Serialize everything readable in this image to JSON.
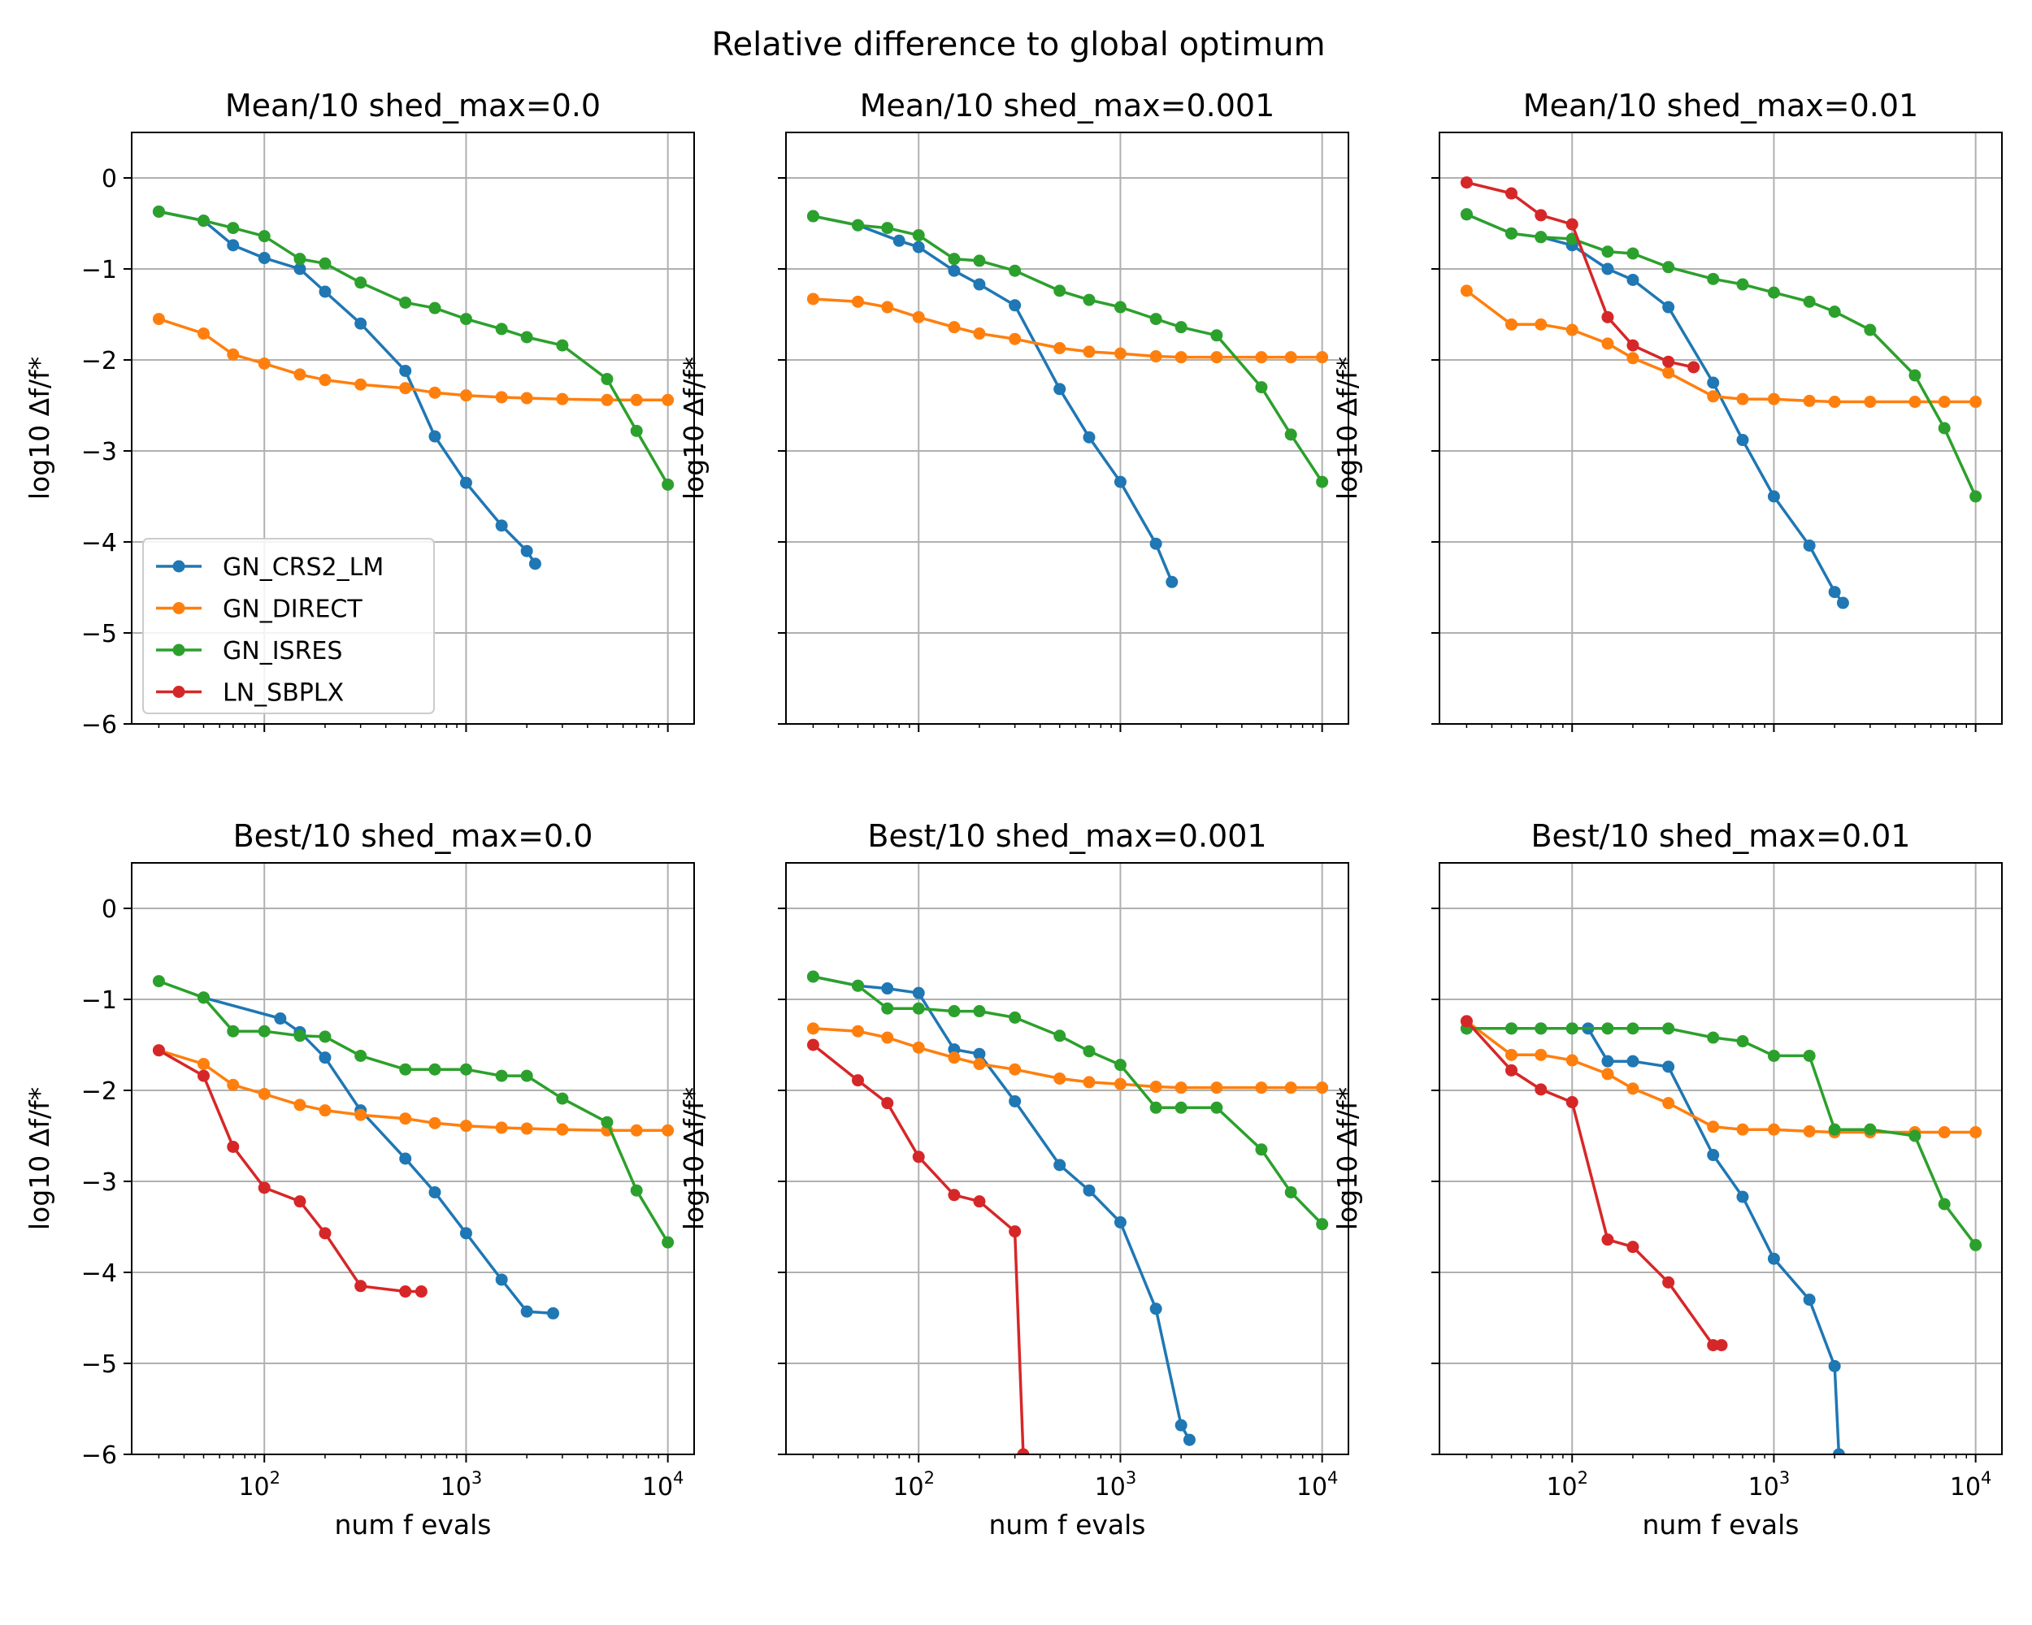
{
  "figure": {
    "suptitle": "Relative difference to global optimum"
  },
  "colors": {
    "GN_CRS2_LM": "#1f77b4",
    "GN_DIRECT": "#ff7f0e",
    "GN_ISRES": "#2ca02c",
    "LN_SBPLX": "#d62728",
    "grid": "#b0b0b0",
    "axes": "#000000"
  },
  "legend": {
    "placement": "lower-left of first panel",
    "entries": [
      "GN_CRS2_LM",
      "GN_DIRECT",
      "GN_ISRES",
      "LN_SBPLX"
    ]
  },
  "chart_data": [
    {
      "type": "line",
      "title": "Mean/10 shed_max=0.0",
      "xlabel": "",
      "ylabel": "log10 Δf/f*",
      "xscale": "log",
      "xlim": [
        22,
        13500
      ],
      "ylim": [
        -6,
        0.5
      ],
      "yticks": [
        "0",
        "−1",
        "−2",
        "−3",
        "−4",
        "−5",
        "−6"
      ],
      "xticks": [],
      "grid": true,
      "legend": true,
      "series": [
        {
          "name": "GN_CRS2_LM",
          "x": [
            30,
            50,
            70,
            100,
            150,
            200,
            300,
            500,
            700,
            1000,
            1500,
            2000,
            2200
          ],
          "y": [
            -0.37,
            -0.47,
            -0.74,
            -0.88,
            -1.0,
            -1.25,
            -1.6,
            -2.12,
            -2.84,
            -3.35,
            -3.82,
            -4.1,
            -4.24
          ]
        },
        {
          "name": "GN_DIRECT",
          "x": [
            30,
            50,
            70,
            100,
            150,
            200,
            300,
            500,
            700,
            1000,
            1500,
            2000,
            3000,
            5000,
            7000,
            10000
          ],
          "y": [
            -1.55,
            -1.71,
            -1.94,
            -2.04,
            -2.16,
            -2.22,
            -2.27,
            -2.31,
            -2.36,
            -2.39,
            -2.41,
            -2.42,
            -2.43,
            -2.44,
            -2.44,
            -2.44
          ]
        },
        {
          "name": "GN_ISRES",
          "x": [
            30,
            50,
            70,
            100,
            150,
            200,
            300,
            500,
            700,
            1000,
            1500,
            2000,
            3000,
            5000,
            7000,
            10000
          ],
          "y": [
            -0.37,
            -0.47,
            -0.55,
            -0.64,
            -0.89,
            -0.94,
            -1.15,
            -1.37,
            -1.43,
            -1.55,
            -1.66,
            -1.75,
            -1.84,
            -2.21,
            -2.78,
            -3.37
          ]
        }
      ]
    },
    {
      "type": "line",
      "title": "Mean/10 shed_max=0.001",
      "xlabel": "",
      "ylabel": "log10 Δf/f*",
      "xscale": "log",
      "xlim": [
        22,
        13500
      ],
      "ylim": [
        -6,
        0.5
      ],
      "yticks": [],
      "xticks": [],
      "grid": true,
      "series": [
        {
          "name": "GN_CRS2_LM",
          "x": [
            30,
            50,
            80,
            100,
            150,
            200,
            300,
            500,
            700,
            1000,
            1500,
            1800
          ],
          "y": [
            -0.42,
            -0.52,
            -0.69,
            -0.76,
            -1.02,
            -1.17,
            -1.4,
            -2.32,
            -2.85,
            -3.34,
            -4.02,
            -4.44
          ]
        },
        {
          "name": "GN_DIRECT",
          "x": [
            30,
            50,
            70,
            100,
            150,
            200,
            300,
            500,
            700,
            1000,
            1500,
            2000,
            3000,
            5000,
            7000,
            10000
          ],
          "y": [
            -1.33,
            -1.36,
            -1.42,
            -1.53,
            -1.64,
            -1.71,
            -1.77,
            -1.87,
            -1.91,
            -1.93,
            -1.96,
            -1.97,
            -1.97,
            -1.97,
            -1.97,
            -1.97
          ]
        },
        {
          "name": "GN_ISRES",
          "x": [
            30,
            50,
            70,
            100,
            150,
            200,
            300,
            500,
            700,
            1000,
            1500,
            2000,
            3000,
            5000,
            7000,
            10000
          ],
          "y": [
            -0.42,
            -0.52,
            -0.55,
            -0.63,
            -0.89,
            -0.91,
            -1.02,
            -1.24,
            -1.34,
            -1.42,
            -1.55,
            -1.64,
            -1.73,
            -2.3,
            -2.82,
            -3.34
          ]
        }
      ]
    },
    {
      "type": "line",
      "title": "Mean/10 shed_max=0.01",
      "xlabel": "",
      "ylabel": "log10 Δf/f*",
      "xscale": "log",
      "xlim": [
        22,
        13500
      ],
      "ylim": [
        -6,
        0.5
      ],
      "yticks": [],
      "xticks": [],
      "grid": true,
      "series": [
        {
          "name": "GN_CRS2_LM",
          "x": [
            30,
            50,
            70,
            100,
            150,
            200,
            300,
            500,
            700,
            1000,
            1500,
            2000,
            2200
          ],
          "y": [
            -0.4,
            -0.61,
            -0.65,
            -0.74,
            -1.0,
            -1.12,
            -1.42,
            -2.25,
            -2.88,
            -3.5,
            -4.04,
            -4.55,
            -4.67
          ]
        },
        {
          "name": "GN_DIRECT",
          "x": [
            30,
            50,
            70,
            100,
            150,
            200,
            300,
            500,
            700,
            1000,
            1500,
            2000,
            3000,
            5000,
            7000,
            10000
          ],
          "y": [
            -1.24,
            -1.61,
            -1.61,
            -1.67,
            -1.82,
            -1.98,
            -2.14,
            -2.4,
            -2.43,
            -2.43,
            -2.45,
            -2.46,
            -2.46,
            -2.46,
            -2.46,
            -2.46
          ]
        },
        {
          "name": "GN_ISRES",
          "x": [
            30,
            50,
            70,
            100,
            150,
            200,
            300,
            500,
            700,
            1000,
            1500,
            2000,
            3000,
            5000,
            7000,
            10000
          ],
          "y": [
            -0.4,
            -0.61,
            -0.65,
            -0.67,
            -0.81,
            -0.83,
            -0.98,
            -1.11,
            -1.17,
            -1.26,
            -1.36,
            -1.47,
            -1.67,
            -2.17,
            -2.75,
            -3.5
          ]
        },
        {
          "name": "LN_SBPLX",
          "x": [
            30,
            50,
            70,
            100,
            150,
            200,
            300,
            400
          ],
          "y": [
            -0.05,
            -0.17,
            -0.41,
            -0.51,
            -1.53,
            -1.84,
            -2.02,
            -2.08
          ]
        }
      ]
    },
    {
      "type": "line",
      "title": "Best/10 shed_max=0.0",
      "xlabel": "num f evals",
      "ylabel": "log10 Δf/f*",
      "xscale": "log",
      "xlim": [
        22,
        13500
      ],
      "ylim": [
        -6,
        0.5
      ],
      "yticks": [
        "0",
        "−1",
        "−2",
        "−3",
        "−4",
        "−5",
        "−6"
      ],
      "xticks": [
        "10",
        "10",
        "10"
      ],
      "xtick_exponents": [
        "2",
        "3",
        "4"
      ],
      "grid": true,
      "series": [
        {
          "name": "GN_CRS2_LM",
          "x": [
            50,
            120,
            150,
            200,
            300,
            500,
            700,
            1000,
            1500,
            2000,
            2700
          ],
          "y": [
            -0.98,
            -1.21,
            -1.36,
            -1.64,
            -2.22,
            -2.75,
            -3.12,
            -3.57,
            -4.08,
            -4.43,
            -4.45
          ]
        },
        {
          "name": "GN_DIRECT",
          "x": [
            30,
            50,
            70,
            100,
            150,
            200,
            300,
            500,
            700,
            1000,
            1500,
            2000,
            3000,
            5000,
            7000,
            10000
          ],
          "y": [
            -1.56,
            -1.71,
            -1.94,
            -2.04,
            -2.16,
            -2.22,
            -2.27,
            -2.31,
            -2.36,
            -2.39,
            -2.41,
            -2.42,
            -2.43,
            -2.44,
            -2.44,
            -2.44
          ]
        },
        {
          "name": "GN_ISRES",
          "x": [
            30,
            50,
            70,
            100,
            150,
            200,
            300,
            500,
            700,
            1000,
            1500,
            2000,
            3000,
            5000,
            7000,
            10000
          ],
          "y": [
            -0.8,
            -0.98,
            -1.35,
            -1.35,
            -1.4,
            -1.41,
            -1.62,
            -1.77,
            -1.77,
            -1.77,
            -1.84,
            -1.84,
            -2.09,
            -2.35,
            -3.1,
            -3.67
          ]
        },
        {
          "name": "LN_SBPLX",
          "x": [
            30,
            50,
            70,
            100,
            150,
            200,
            300,
            500,
            600
          ],
          "y": [
            -1.56,
            -1.84,
            -2.62,
            -3.07,
            -3.22,
            -3.57,
            -4.15,
            -4.21,
            -4.21
          ]
        }
      ]
    },
    {
      "type": "line",
      "title": "Best/10 shed_max=0.001",
      "xlabel": "num f evals",
      "ylabel": "log10 Δf/f*",
      "xscale": "log",
      "xlim": [
        22,
        13500
      ],
      "ylim": [
        -6,
        0.5
      ],
      "yticks": [],
      "xticks": [
        "10",
        "10",
        "10"
      ],
      "xtick_exponents": [
        "2",
        "3",
        "4"
      ],
      "grid": true,
      "series": [
        {
          "name": "GN_CRS2_LM",
          "x": [
            30,
            50,
            70,
            100,
            150,
            200,
            300,
            500,
            700,
            1000,
            1500,
            2000,
            2200
          ],
          "y": [
            -0.75,
            -0.85,
            -0.88,
            -0.93,
            -1.55,
            -1.6,
            -2.12,
            -2.82,
            -3.1,
            -3.45,
            -4.4,
            -5.68,
            -5.84
          ]
        },
        {
          "name": "GN_DIRECT",
          "x": [
            30,
            50,
            70,
            100,
            150,
            200,
            300,
            500,
            700,
            1000,
            1500,
            2000,
            3000,
            5000,
            7000,
            10000
          ],
          "y": [
            -1.32,
            -1.35,
            -1.42,
            -1.53,
            -1.64,
            -1.71,
            -1.77,
            -1.87,
            -1.91,
            -1.93,
            -1.96,
            -1.97,
            -1.97,
            -1.97,
            -1.97,
            -1.97
          ]
        },
        {
          "name": "GN_ISRES",
          "x": [
            30,
            50,
            70,
            100,
            150,
            200,
            300,
            500,
            700,
            1000,
            1500,
            2000,
            3000,
            5000,
            7000,
            10000
          ],
          "y": [
            -0.75,
            -0.85,
            -1.1,
            -1.1,
            -1.13,
            -1.13,
            -1.2,
            -1.4,
            -1.57,
            -1.72,
            -2.19,
            -2.19,
            -2.19,
            -2.65,
            -3.12,
            -3.47
          ]
        },
        {
          "name": "LN_SBPLX",
          "x": [
            30,
            50,
            70,
            100,
            150,
            200,
            300,
            330
          ],
          "y": [
            -1.5,
            -1.89,
            -2.14,
            -2.73,
            -3.15,
            -3.22,
            -3.55,
            -6.0
          ]
        }
      ]
    },
    {
      "type": "line",
      "title": "Best/10 shed_max=0.01",
      "xlabel": "num f evals",
      "ylabel": "log10 Δf/f*",
      "xscale": "log",
      "xlim": [
        22,
        13500
      ],
      "ylim": [
        -6,
        0.5
      ],
      "yticks": [],
      "xticks": [
        "10",
        "10",
        "10"
      ],
      "xtick_exponents": [
        "2",
        "3",
        "4"
      ],
      "grid": true,
      "series": [
        {
          "name": "GN_CRS2_LM",
          "x": [
            30,
            50,
            70,
            100,
            120,
            150,
            200,
            300,
            500,
            700,
            1000,
            1500,
            2000,
            2100
          ],
          "y": [
            -1.32,
            -1.32,
            -1.32,
            -1.32,
            -1.32,
            -1.68,
            -1.68,
            -1.74,
            -2.71,
            -3.17,
            -3.85,
            -4.3,
            -5.03,
            -6.0
          ]
        },
        {
          "name": "GN_DIRECT",
          "x": [
            30,
            50,
            70,
            100,
            150,
            200,
            300,
            500,
            700,
            1000,
            1500,
            2000,
            3000,
            5000,
            7000,
            10000
          ],
          "y": [
            -1.24,
            -1.61,
            -1.61,
            -1.67,
            -1.82,
            -1.98,
            -2.14,
            -2.4,
            -2.43,
            -2.43,
            -2.45,
            -2.46,
            -2.46,
            -2.46,
            -2.46,
            -2.46
          ]
        },
        {
          "name": "GN_ISRES",
          "x": [
            30,
            50,
            70,
            100,
            150,
            200,
            300,
            500,
            700,
            1000,
            1500,
            2000,
            3000,
            5000,
            7000,
            10000
          ],
          "y": [
            -1.32,
            -1.32,
            -1.32,
            -1.32,
            -1.32,
            -1.32,
            -1.32,
            -1.42,
            -1.46,
            -1.62,
            -1.62,
            -2.43,
            -2.43,
            -2.5,
            -3.25,
            -3.7
          ]
        },
        {
          "name": "LN_SBPLX",
          "x": [
            30,
            50,
            70,
            100,
            150,
            200,
            300,
            500,
            550
          ],
          "y": [
            -1.24,
            -1.78,
            -1.99,
            -2.13,
            -3.64,
            -3.72,
            -4.11,
            -4.8,
            -4.8
          ]
        }
      ]
    }
  ]
}
